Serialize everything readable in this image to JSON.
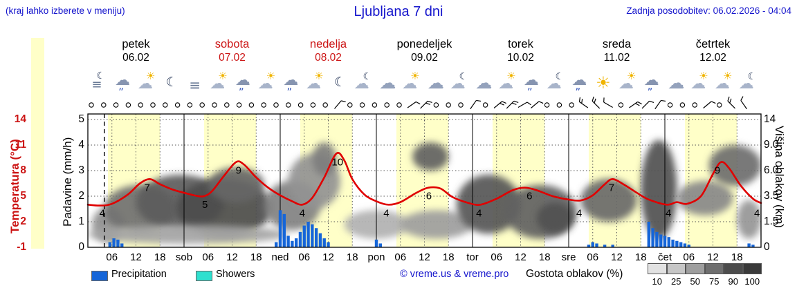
{
  "header": {
    "hint": "(kraj lahko izberete v meniju)",
    "title": "Ljubljana 7 dni",
    "updated": "Zadnja posodobitev: 06.02.2026 - 04:04"
  },
  "colors": {
    "accent_blue": "#1414cc",
    "highlight_red": "#cc1414",
    "temperature_line": "#e00000",
    "precipitation_bar": "#1565d8",
    "showers": "#2fe0cf",
    "day_band": "#ffffc8"
  },
  "days": [
    {
      "name": "petek",
      "date": "06.02",
      "highlight": false
    },
    {
      "name": "sobota",
      "date": "07.02",
      "highlight": true
    },
    {
      "name": "nedelja",
      "date": "08.02",
      "highlight": true
    },
    {
      "name": "ponedeljek",
      "date": "09.02",
      "highlight": false
    },
    {
      "name": "torek",
      "date": "10.02",
      "highlight": false
    },
    {
      "name": "sreda",
      "date": "11.02",
      "highlight": false
    },
    {
      "name": "četrtek",
      "date": "12.02",
      "highlight": false
    }
  ],
  "axes": {
    "temp": {
      "label": "Temperatura (°C)",
      "ticks": [
        "14",
        "11",
        "8",
        "5",
        "2",
        "-1"
      ]
    },
    "precip": {
      "label": "Padavine (mm/h)",
      "ticks": [
        "5",
        "4",
        "3",
        "2",
        "1",
        "0"
      ]
    },
    "cloud": {
      "label": "Višina oblakov (km)",
      "ticks": [
        "14",
        "9.0",
        "6.0",
        "3.5",
        "1.5",
        "0"
      ]
    }
  },
  "x_axis": {
    "hour_labels": [
      "06",
      "12",
      "18"
    ],
    "day_abbrevs": [
      "sob",
      "ned",
      "pon",
      "tor",
      "sre",
      "čet"
    ]
  },
  "legend": {
    "precipitation": "Precipitation",
    "showers": "Showers",
    "credit": "© vreme.us & vreme.pro",
    "cloud_density": "Gostota oblakov (%)",
    "cloud_scale": [
      "10",
      "25",
      "50",
      "75",
      "90",
      "100"
    ]
  },
  "chart_data": {
    "type": "meteogram",
    "x_unit": "hours from 06.02 00:00",
    "x_range": [
      0,
      168
    ],
    "temp_axis_c": [
      -1,
      14
    ],
    "precip_axis_mmh": [
      0,
      5
    ],
    "cloud_height_axis_km": [
      "0",
      "1.5",
      "3.5",
      "6.0",
      "9.0",
      "14"
    ],
    "current_time_hour": 4.1,
    "daylight_band_hours": [
      5,
      18
    ],
    "temperature": {
      "unit": "°C",
      "series": [
        [
          0,
          4
        ],
        [
          3,
          3.9
        ],
        [
          6,
          4.1
        ],
        [
          10,
          5.2
        ],
        [
          13,
          6.5
        ],
        [
          15.5,
          7
        ],
        [
          18,
          6.4
        ],
        [
          21,
          5.8
        ],
        [
          24,
          5.4
        ],
        [
          27,
          5.05
        ],
        [
          29,
          5
        ],
        [
          31,
          5.6
        ],
        [
          34,
          7.4
        ],
        [
          37,
          9
        ],
        [
          39,
          8.7
        ],
        [
          42,
          7.2
        ],
        [
          45,
          6
        ],
        [
          48,
          5.1
        ],
        [
          51,
          4.4
        ],
        [
          53.5,
          4
        ],
        [
          56,
          4.8
        ],
        [
          59,
          7.2
        ],
        [
          62,
          10
        ],
        [
          64,
          9.2
        ],
        [
          66,
          7
        ],
        [
          69,
          5.2
        ],
        [
          72,
          4.4
        ],
        [
          75,
          4
        ],
        [
          78,
          4.3
        ],
        [
          82,
          5.4
        ],
        [
          85,
          6
        ],
        [
          88,
          5.9
        ],
        [
          91,
          4.9
        ],
        [
          95,
          4.2
        ],
        [
          98,
          4
        ],
        [
          102,
          4.7
        ],
        [
          106,
          5.7
        ],
        [
          109,
          6
        ],
        [
          112,
          5.7
        ],
        [
          116,
          5
        ],
        [
          120,
          4.6
        ],
        [
          123,
          4.5
        ],
        [
          126,
          5.1
        ],
        [
          129,
          6.4
        ],
        [
          131,
          7
        ],
        [
          134,
          6.3
        ],
        [
          137,
          5.4
        ],
        [
          140,
          4.6
        ],
        [
          144.5,
          4
        ],
        [
          147,
          4.3
        ],
        [
          149.5,
          4.1
        ],
        [
          153,
          5
        ],
        [
          156,
          7.6
        ],
        [
          158,
          9
        ],
        [
          160,
          8.3
        ],
        [
          163,
          6.2
        ],
        [
          166,
          4.7
        ],
        [
          168,
          4.2
        ]
      ],
      "labels": [
        {
          "h": 3.6,
          "v": 4
        },
        {
          "h": 14.8,
          "v": 7
        },
        {
          "h": 29.2,
          "v": 5
        },
        {
          "h": 37.6,
          "v": 9
        },
        {
          "h": 53.5,
          "v": 4
        },
        {
          "h": 62.3,
          "v": 10
        },
        {
          "h": 74.5,
          "v": 4
        },
        {
          "h": 85.1,
          "v": 6
        },
        {
          "h": 97.6,
          "v": 4
        },
        {
          "h": 110.2,
          "v": 6
        },
        {
          "h": 122.6,
          "v": 4
        },
        {
          "h": 130.7,
          "v": 7
        },
        {
          "h": 144.9,
          "v": 4
        },
        {
          "h": 157.1,
          "v": 9
        },
        {
          "h": 167,
          "v": 4
        }
      ]
    },
    "precipitation": [
      [
        5.5,
        0.2
      ],
      [
        6.5,
        0.35
      ],
      [
        7.5,
        0.3
      ],
      [
        8.5,
        0.15
      ],
      [
        47,
        0.2
      ],
      [
        48,
        1.45
      ],
      [
        49,
        1.3
      ],
      [
        50,
        0.45
      ],
      [
        51,
        0.25
      ],
      [
        52,
        0.35
      ],
      [
        53,
        0.6
      ],
      [
        54,
        0.85
      ],
      [
        55,
        1.0
      ],
      [
        56,
        0.9
      ],
      [
        57,
        0.75
      ],
      [
        58,
        0.55
      ],
      [
        59,
        0.35
      ],
      [
        60,
        0.2
      ],
      [
        72,
        0.3
      ],
      [
        73,
        0.15
      ],
      [
        125,
        0.1
      ],
      [
        126,
        0.2
      ],
      [
        127,
        0.15
      ],
      [
        129,
        0.1
      ],
      [
        131,
        0.1
      ],
      [
        140,
        1.0
      ],
      [
        141,
        0.75
      ],
      [
        142,
        0.6
      ],
      [
        143,
        0.5
      ],
      [
        144,
        0.45
      ],
      [
        145,
        0.4
      ],
      [
        146,
        0.3
      ],
      [
        147,
        0.25
      ],
      [
        148,
        0.2
      ],
      [
        149,
        0.15
      ],
      [
        150,
        0.1
      ],
      [
        165,
        0.15
      ],
      [
        166,
        0.1
      ]
    ],
    "wind": [
      "calm",
      "calm",
      "calm",
      "calm",
      "calm",
      "calm",
      "calm",
      "calm",
      "calm",
      "calm",
      "calm",
      "calm",
      "calm",
      "calm",
      "calm",
      "calm",
      "calm",
      "calm",
      "calm",
      "calm",
      {
        "angle": 40,
        "ticks": 1
      },
      "calm",
      "calm",
      "calm",
      "calm",
      "calm",
      {
        "angle": 55,
        "ticks": 1
      },
      {
        "angle": 45,
        "ticks": 2
      },
      "calm",
      "calm",
      "calm",
      {
        "angle": 35,
        "ticks": 1
      },
      "calm",
      {
        "angle": 50,
        "ticks": 2
      },
      {
        "angle": 45,
        "ticks": 2
      },
      {
        "angle": 60,
        "ticks": 1
      },
      {
        "angle": 50,
        "ticks": 1
      },
      "calm",
      "calm",
      "calm",
      {
        "angle": -55,
        "ticks": 2
      },
      {
        "angle": -45,
        "ticks": 2
      },
      {
        "angle": -60,
        "ticks": 1
      },
      "calm",
      {
        "angle": 55,
        "ticks": 2
      },
      {
        "angle": 45,
        "ticks": 1
      },
      {
        "angle": 35,
        "ticks": 1
      },
      "calm",
      "calm",
      "calm",
      {
        "angle": 50,
        "ticks": 1
      },
      "calm",
      {
        "angle": -45,
        "ticks": 2
      },
      {
        "angle": -35,
        "ticks": 1
      }
    ],
    "weather_icons": [
      "moon-fog",
      "cloud-rain",
      "sun-cloud",
      "moon",
      "fog",
      "sun-cloud",
      "cloud-rain",
      "sun-cloud",
      "cloud-rain",
      "sun-cloud",
      "moon",
      "moon-cloud",
      "cloud",
      "sun-cloud",
      "cloud",
      "moon-cloud",
      "cloud",
      "sun-cloud",
      "cloud-rain",
      "moon-cloud",
      "cloud-rain",
      "sun",
      "sun-cloud",
      "cloud-rain",
      "cloud",
      "sun-cloud",
      "sun-cloud",
      "moon-cloud"
    ],
    "cloud_regions": [
      {
        "h1": 1,
        "h2": 9,
        "km1": 0.3,
        "km2": 2.6,
        "density": 50
      },
      {
        "h1": 4,
        "h2": 22,
        "km1": 0.8,
        "km2": 4.6,
        "density": 68
      },
      {
        "h1": 12,
        "h2": 34,
        "km1": 1.0,
        "km2": 5.6,
        "density": 80
      },
      {
        "h1": 22,
        "h2": 46,
        "km1": 0.6,
        "km2": 5.2,
        "density": 88
      },
      {
        "h1": 30,
        "h2": 44,
        "km1": 3.0,
        "km2": 6.4,
        "density": 74
      },
      {
        "h1": 0,
        "h2": 50,
        "km1": 0.2,
        "km2": 1.3,
        "density": 38
      },
      {
        "h1": 44,
        "h2": 58,
        "km1": 1.0,
        "km2": 5.0,
        "density": 58
      },
      {
        "h1": 50,
        "h2": 63,
        "km1": 2.5,
        "km2": 8.0,
        "density": 48
      },
      {
        "h1": 56,
        "h2": 62,
        "km1": 5.5,
        "km2": 9.5,
        "density": 60
      },
      {
        "h1": 64,
        "h2": 80,
        "km1": 0.5,
        "km2": 2.4,
        "density": 30
      },
      {
        "h1": 78,
        "h2": 96,
        "km1": 0.5,
        "km2": 2.4,
        "density": 42
      },
      {
        "h1": 81,
        "h2": 90,
        "km1": 6.0,
        "km2": 9.5,
        "density": 76
      },
      {
        "h1": 92,
        "h2": 108,
        "km1": 0.8,
        "km2": 5.6,
        "density": 82
      },
      {
        "h1": 104,
        "h2": 122,
        "km1": 0.5,
        "km2": 4.6,
        "density": 76
      },
      {
        "h1": 112,
        "h2": 121,
        "km1": 0.8,
        "km2": 3.0,
        "density": 86
      },
      {
        "h1": 123,
        "h2": 137,
        "km1": 1.5,
        "km2": 5.2,
        "density": 72
      },
      {
        "h1": 138,
        "h2": 147,
        "km1": 0.5,
        "km2": 10.0,
        "density": 86
      },
      {
        "h1": 147,
        "h2": 161,
        "km1": 2.0,
        "km2": 5.0,
        "density": 54
      },
      {
        "h1": 155,
        "h2": 168,
        "km1": 4.5,
        "km2": 9.0,
        "density": 70
      },
      {
        "h1": 162,
        "h2": 168,
        "km1": 0.5,
        "km2": 3.2,
        "density": 46
      }
    ]
  }
}
